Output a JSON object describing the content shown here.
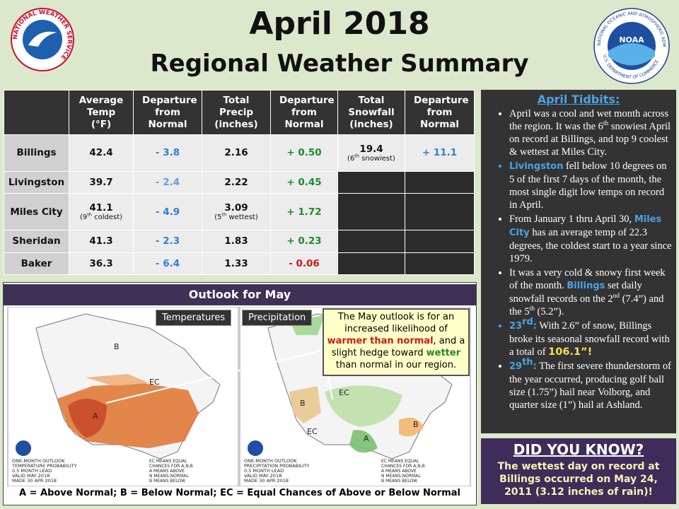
{
  "header": {
    "title": "April 2018",
    "subtitle": "Regional Weather Summary"
  },
  "logos": {
    "left": {
      "ring": "NATIONAL WEATHER SERVICE"
    },
    "right": {
      "center": "NOAA",
      "ring_top": "NATIONAL OCEANIC AND ATMOSPHERIC ADMINISTRATION",
      "ring_bottom": "U.S. DEPARTMENT OF COMMERCE"
    }
  },
  "table": {
    "columns": [
      null,
      "Average Temp (°F)",
      "Departure from Normal",
      "Total Precip (inches)",
      "Departure from Normal",
      "Total Snowfall (inches)",
      "Departure from Normal"
    ],
    "rows": [
      [
        "Billings",
        "42.4",
        {
          "text": "- 3.8",
          "color": "#2f80d0"
        },
        "2.16",
        {
          "text": "+ 0.50",
          "color": "#1e8a2a"
        },
        {
          "text": "19.4",
          "note": [
            "(6",
            "th",
            " snowiest)"
          ]
        },
        {
          "text": "+ 11.1",
          "color": "#2f80d0"
        }
      ],
      [
        "Livingston",
        "39.7",
        {
          "text": "- 2.4",
          "color": "#5aa0e0"
        },
        "2.22",
        {
          "text": "+ 0.45",
          "color": "#1e8a2a"
        },
        null,
        null
      ],
      [
        "Miles City",
        {
          "text": "41.1",
          "note": [
            "(9",
            "th",
            " coldest)"
          ]
        },
        {
          "text": "- 4.9",
          "color": "#2f80d0"
        },
        {
          "text": "3.09",
          "note": [
            "(5",
            "th",
            " wettest)"
          ]
        },
        {
          "text": "+ 1.72",
          "color": "#1e8a2a"
        },
        null,
        null
      ],
      [
        "Sheridan",
        "41.3",
        {
          "text": "- 2.3",
          "color": "#2f80d0"
        },
        "1.83",
        {
          "text": "+ 0.23",
          "color": "#1e8a2a"
        },
        null,
        null
      ],
      [
        "Baker",
        "36.3",
        {
          "text": "- 6.4",
          "color": "#2f80d0"
        },
        "1.33",
        {
          "text": "- 0.06",
          "color": "#d01818"
        },
        null,
        null
      ]
    ]
  },
  "outlook": {
    "title": "Outlook for May",
    "maps": [
      {
        "label": "Temperatures",
        "marks": [
          "A",
          "EC",
          "B"
        ],
        "caption": [
          "ONE-MONTH OUTLOOK",
          "TEMPERATURE PROBABILITY",
          "0.5 MONTH LEAD",
          "VALID MAY 2018",
          "MADE 30 APR 2018"
        ],
        "key": [
          "EC MEANS EQUAL",
          "CHANCES FOR A,N,B",
          "A MEANS ABOVE",
          "N MEANS NORMAL",
          "B MEANS BELOW"
        ]
      },
      {
        "label": "Precipitation",
        "marks": [
          "B",
          "EC",
          "A",
          "EC",
          "B"
        ],
        "caption": [
          "ONE-MONTH OUTLOOK",
          "PRECIPITATION PROBABILITY",
          "0.5 MONTH LEAD",
          "VALID MAY 2018",
          "MADE 30 APR 2018"
        ],
        "key": [
          "EC MEANS EQUAL",
          "CHANCES FOR A,N,B",
          "A MEANS ABOVE",
          "N MEANS NORMAL",
          "B MEANS BELOW"
        ]
      }
    ],
    "callout": [
      "The May outlook is for an increased likelihood of ",
      {
        "text": "warmer than normal",
        "style": "warm"
      },
      ", and a slight hedge toward ",
      {
        "text": "wetter",
        "style": "wet"
      },
      " than normal in our region."
    ],
    "legend": "A = Above Normal;  B = Below Normal;  EC = Equal Chances of Above or Below Normal"
  },
  "tidbits": {
    "title": "April Tidbits:",
    "bullets": [
      [
        "April was a cool and wet month across the region. It was the 6",
        {
          "text": "th",
          "style": "sup"
        },
        " snowiest April on record at Billings, and top 9 coolest & wettest at Miles City."
      ],
      [
        {
          "text": "Livingston",
          "style": "place"
        },
        " fell below 10 degrees on 5 of the first 7 days of the month, the most single digit low temps on record in April."
      ],
      [
        "From January 1 thru April 30, ",
        {
          "text": "Miles City",
          "style": "place"
        },
        " has an average temp of 22.3 degrees, the coldest start to a year since 1979."
      ],
      [
        "It was a very cold & snowy first week of the month. ",
        {
          "text": "Billings",
          "style": "place"
        },
        " set daily snowfall records on the 2",
        {
          "text": "nd",
          "style": "sup"
        },
        " (7.4”) and the 5",
        {
          "text": "th",
          "style": "sup"
        },
        " (5.2”)."
      ],
      [
        {
          "text": "23",
          "style": "place"
        },
        {
          "text": "rd",
          "style": "place-sup"
        },
        {
          "text": ":",
          "style": "place"
        },
        " With 2.6” of snow, Billings broke its seasonal snowfall record with a total of  ",
        {
          "text": "106.1”!",
          "style": "total"
        }
      ],
      [
        {
          "text": "29",
          "style": "place"
        },
        {
          "text": "th",
          "style": "place-sup"
        },
        {
          "text": ":",
          "style": "place"
        },
        " The first severe thunderstorm of the year occurred, producing golf ball size (1.75”) hail near Volborg, and quarter size (1”) hail at Ashland."
      ]
    ]
  },
  "did_you_know": {
    "title": "DID YOU KNOW?",
    "text": "The wettest day on record at Billings occurred on May 24, 2011 (3.12 inches of rain)!"
  }
}
